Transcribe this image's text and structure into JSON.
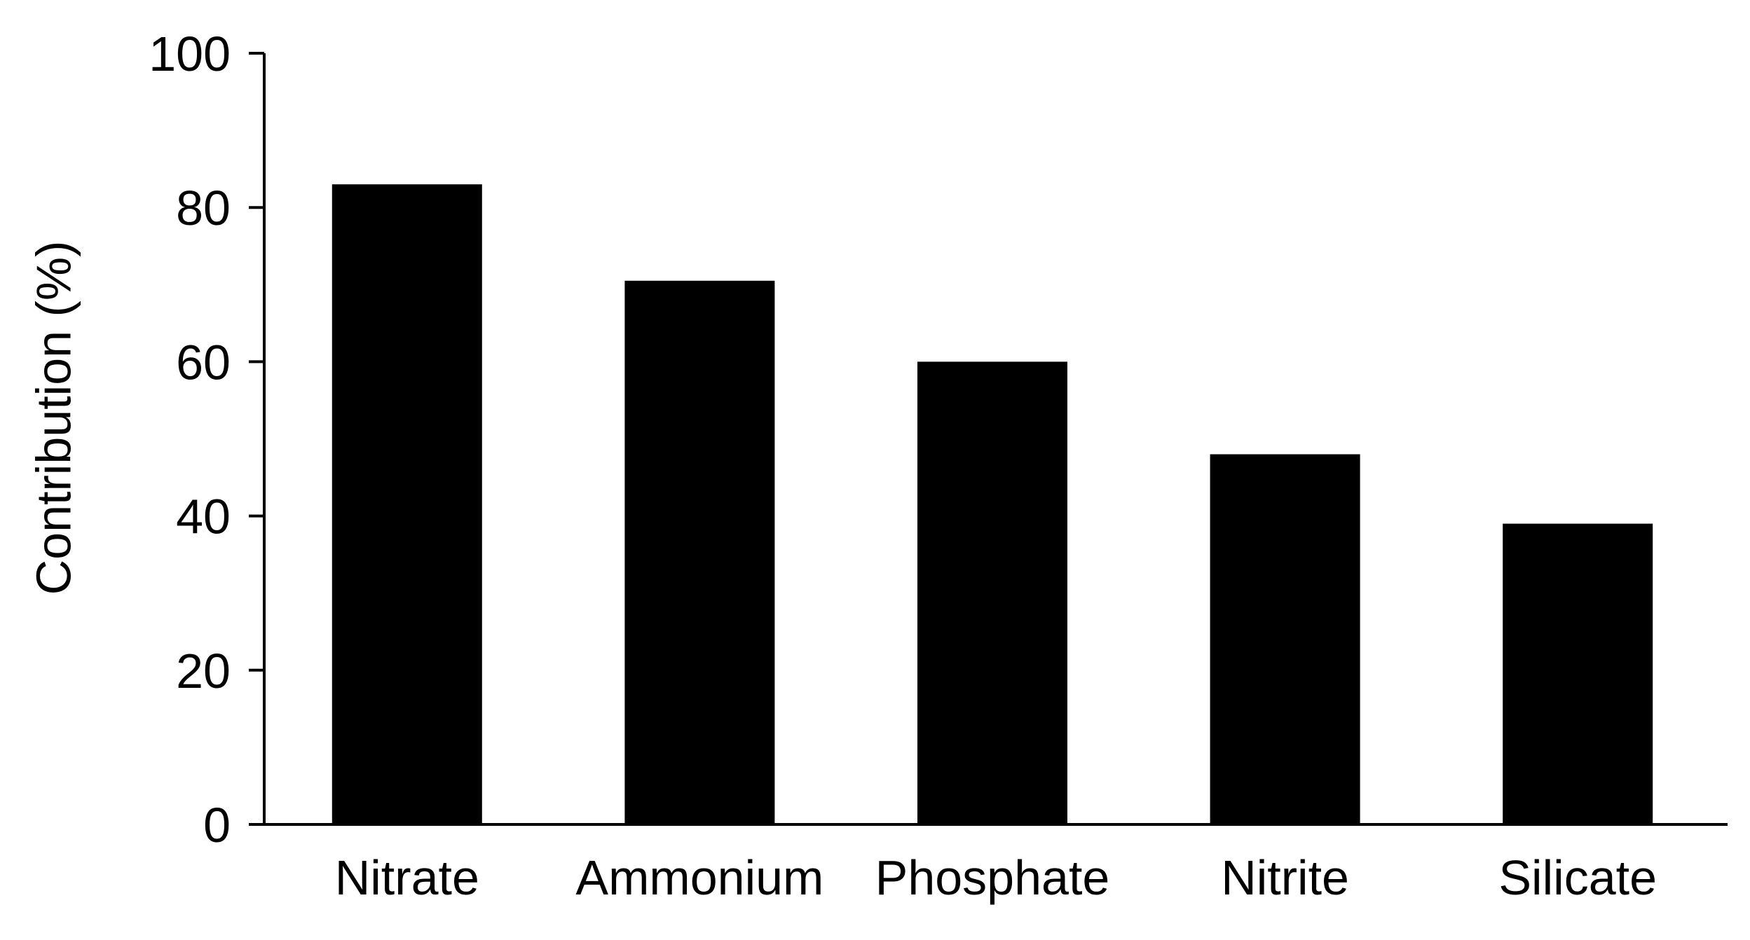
{
  "chart_data": {
    "type": "bar",
    "categories": [
      "Nitrate",
      "Ammonium",
      "Phosphate",
      "Nitrite",
      "Silicate"
    ],
    "values": [
      83,
      70.5,
      60,
      48,
      39
    ],
    "title": "",
    "xlabel": "",
    "ylabel": "Contribution (%)",
    "ylim": [
      0,
      100
    ],
    "yticks": [
      0,
      20,
      40,
      60,
      80,
      100
    ],
    "grid": false,
    "legend": "none",
    "bar_color": "#000000",
    "axis_color": "#000000"
  }
}
